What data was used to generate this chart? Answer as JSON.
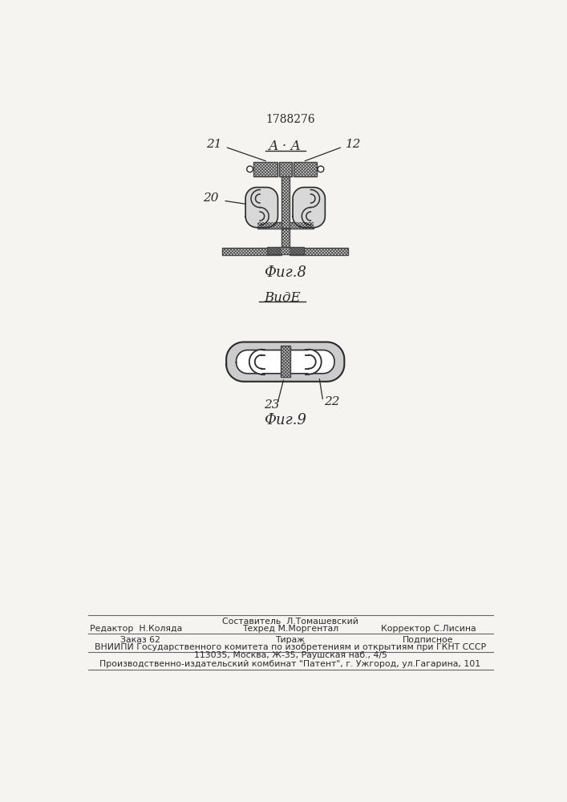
{
  "patent_number": "1788276",
  "fig8_label": "Фиг.8",
  "fig9_label": "Фиг.9",
  "section_label": "А · А",
  "view_label": "ВидЕ",
  "label_21": "21",
  "label_20": "20",
  "label_12": "12",
  "label_22": "22",
  "label_23": "23",
  "bg_color": "#f5f4f0",
  "line_color": "#2a2a2a",
  "footer_line1": "Составитель  Л.Томашевский",
  "footer_line2_left": "Редактор  Н.Коляда",
  "footer_line2_mid": "Техред М.Моргентал",
  "footer_line2_right": "Корректор С.Лисина",
  "footer_line3_left": "Заказ 62",
  "footer_line3_mid": "Тираж",
  "footer_line3_right": "Подписное",
  "footer_line4": "ВНИИПИ Государственного комитета по изобретениям и открытиям при ГКНТ СССР",
  "footer_line5": "113035, Москва, Ж-35, Раушская наб., 4/5",
  "footer_line6": "Производственно-издательский комбинат \"Патент\", г. Ужгород, ул.Гагарина, 101"
}
